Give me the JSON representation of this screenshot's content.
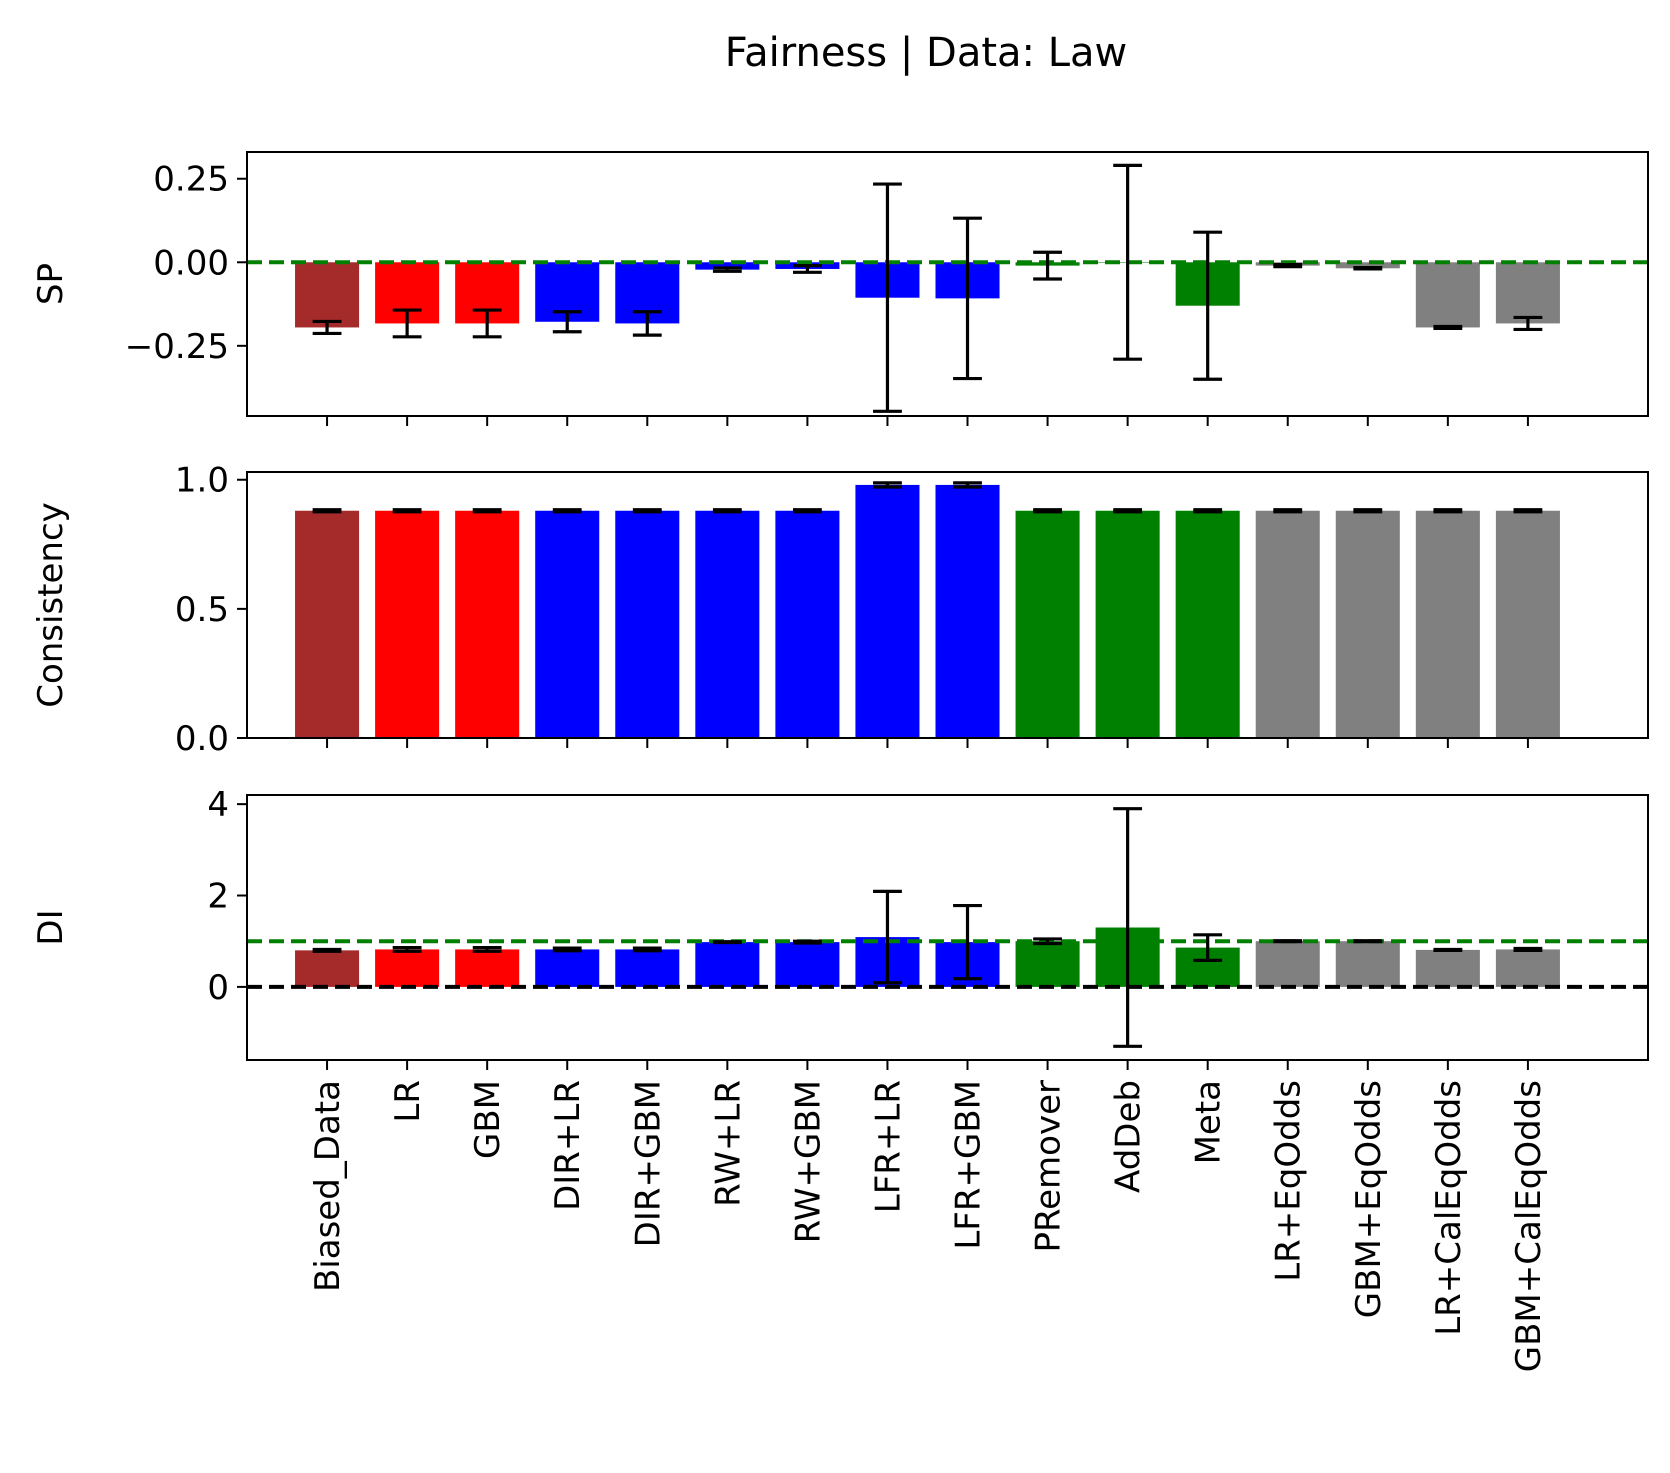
{
  "chart_data": {
    "type": "bar",
    "title": "Fairness  | Data: Law",
    "categories": [
      "Biased_Data",
      "LR",
      "GBM",
      "DIR+LR",
      "DIR+GBM",
      "RW+LR",
      "RW+GBM",
      "LFR+LR",
      "LFR+GBM",
      "PRemover",
      "AdDeb",
      "Meta",
      "LR+EqOdds",
      "GBM+EqOdds",
      "LR+CalEqOdds",
      "GBM+CalEqOdds"
    ],
    "bar_colors": [
      "#a52a2a",
      "#ff0000",
      "#ff0000",
      "#0000ff",
      "#0000ff",
      "#0000ff",
      "#0000ff",
      "#0000ff",
      "#0000ff",
      "#008000",
      "#008000",
      "#008000",
      "#808080",
      "#808080",
      "#808080",
      "#808080"
    ],
    "error_color": "#000000",
    "panels": [
      {
        "ylabel": "SP",
        "ylim": [
          -0.46,
          0.33
        ],
        "yticks": [
          0.25,
          0.0,
          -0.25
        ],
        "ytick_labels": [
          "0.25",
          "0.00",
          "−0.25"
        ],
        "values": [
          -0.195,
          -0.183,
          -0.183,
          -0.178,
          -0.183,
          -0.022,
          -0.02,
          -0.106,
          -0.108,
          -0.01,
          0.0,
          -0.13,
          -0.01,
          -0.018,
          -0.195,
          -0.183
        ],
        "errors": [
          0.018,
          0.04,
          0.04,
          0.03,
          0.035,
          0.005,
          0.01,
          0.34,
          0.24,
          0.04,
          0.29,
          0.22,
          0.003,
          0.002,
          0.003,
          0.018
        ],
        "reference_lines": [
          {
            "y": 0,
            "color": "#008000",
            "style": "dashed"
          }
        ],
        "show_xticklabels": false
      },
      {
        "ylabel": "Consistency",
        "ylim": [
          0.0,
          1.03
        ],
        "yticks": [
          1.0,
          0.5,
          0.0
        ],
        "ytick_labels": [
          "1.0",
          "0.5",
          "0.0"
        ],
        "values": [
          0.88,
          0.88,
          0.88,
          0.88,
          0.88,
          0.88,
          0.88,
          0.98,
          0.98,
          0.88,
          0.88,
          0.88,
          0.88,
          0.88,
          0.88,
          0.88
        ],
        "errors": [
          0.004,
          0.004,
          0.004,
          0.004,
          0.004,
          0.004,
          0.004,
          0.008,
          0.008,
          0.004,
          0.004,
          0.004,
          0.004,
          0.004,
          0.004,
          0.004
        ],
        "reference_lines": [],
        "show_xticklabels": false
      },
      {
        "ylabel": "DI",
        "ylim": [
          -1.6,
          4.2
        ],
        "yticks": [
          4,
          2,
          0
        ],
        "ytick_labels": [
          "4",
          "2",
          "0"
        ],
        "values": [
          0.8,
          0.82,
          0.82,
          0.82,
          0.82,
          0.98,
          0.98,
          1.09,
          0.98,
          1.0,
          1.3,
          0.86,
          1.0,
          1.0,
          0.81,
          0.82
        ],
        "errors": [
          0.02,
          0.04,
          0.04,
          0.03,
          0.03,
          0.01,
          0.02,
          1.0,
          0.8,
          0.05,
          2.6,
          0.28,
          0.01,
          0.01,
          0.01,
          0.02
        ],
        "reference_lines": [
          {
            "y": 1,
            "color": "#008000",
            "style": "dashed"
          },
          {
            "y": 0,
            "color": "#000000",
            "style": "dashed"
          }
        ],
        "show_xticklabels": true
      }
    ]
  }
}
